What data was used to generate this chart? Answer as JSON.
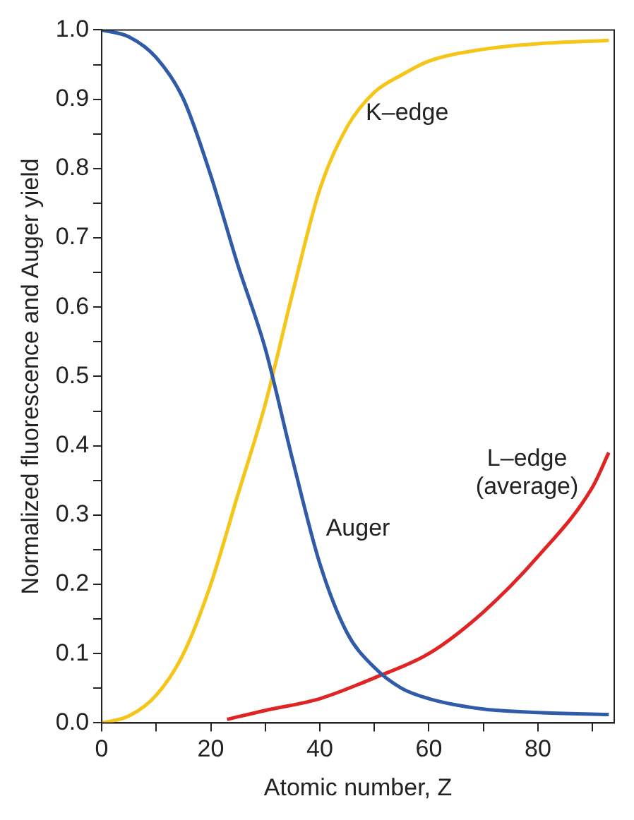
{
  "chart_data": {
    "type": "line",
    "xlabel": "Atomic number, Z",
    "ylabel": "Normalized fluorescence and Auger yield",
    "xlim": [
      0,
      94
    ],
    "xticks": [
      0,
      {
        "value": 10,
        "label": null
      },
      20,
      {
        "value": 30,
        "label": null
      },
      40,
      {
        "value": 50,
        "label": null
      },
      60,
      {
        "value": 70,
        "label": null
      },
      80,
      {
        "value": 90,
        "label": null
      }
    ],
    "ylim": [
      0,
      1
    ],
    "yticks": [
      "0.0",
      {
        "value": 0.05,
        "label": null
      },
      0.1,
      {
        "value": 0.15,
        "label": null
      },
      0.2,
      {
        "value": 0.25,
        "label": null
      },
      0.3,
      {
        "value": 0.35,
        "label": null
      },
      0.4,
      {
        "value": 0.45,
        "label": null
      },
      0.5,
      {
        "value": 0.55,
        "label": null
      },
      0.6,
      {
        "value": 0.65,
        "label": null
      },
      0.7,
      {
        "value": 0.75,
        "label": null
      },
      0.8,
      {
        "value": 0.85,
        "label": null
      },
      0.9,
      {
        "value": 0.95,
        "label": null
      },
      "1.0"
    ],
    "grid": false,
    "legend": false,
    "marker": "none",
    "line_style": "solid",
    "series": [
      {
        "name": "Auger",
        "color": "#2f5ba8",
        "x": [
          0,
          5,
          10,
          15,
          20,
          25,
          30,
          35,
          40,
          45,
          50,
          55,
          60,
          70,
          80,
          93
        ],
        "values": [
          1.0,
          0.99,
          0.96,
          0.9,
          0.79,
          0.66,
          0.54,
          0.38,
          0.23,
          0.13,
          0.08,
          0.05,
          0.035,
          0.02,
          0.015,
          0.012
        ]
      },
      {
        "name": "K–edge",
        "color": "#f5c518",
        "x": [
          0,
          5,
          10,
          15,
          20,
          25,
          30,
          35,
          40,
          45,
          50,
          55,
          60,
          70,
          80,
          93
        ],
        "values": [
          0.0,
          0.01,
          0.04,
          0.1,
          0.2,
          0.33,
          0.46,
          0.62,
          0.77,
          0.86,
          0.91,
          0.935,
          0.955,
          0.972,
          0.98,
          0.985
        ]
      },
      {
        "name": "L–edge\n(average)",
        "color": "#e02424",
        "x": [
          23,
          30,
          40,
          50,
          60,
          70,
          80,
          90,
          93
        ],
        "values": [
          0.005,
          0.018,
          0.035,
          0.065,
          0.1,
          0.16,
          0.24,
          0.34,
          0.39
        ]
      }
    ]
  }
}
